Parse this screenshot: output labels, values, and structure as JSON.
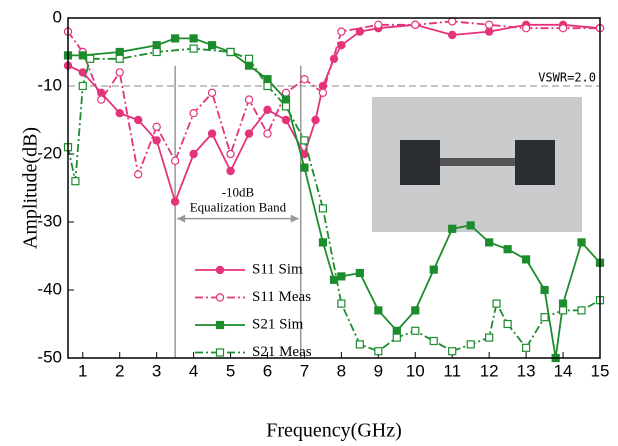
{
  "chart_data": {
    "type": "line",
    "xlabel": "Frequency(GHz)",
    "ylabel": "Amplitude(dB)",
    "xlim": [
      0.6,
      15
    ],
    "ylim": [
      -50,
      0
    ],
    "xticks": [
      1,
      2,
      3,
      4,
      5,
      6,
      7,
      8,
      9,
      10,
      11,
      12,
      13,
      14,
      15
    ],
    "yticks": [
      0,
      -10,
      -20,
      -30,
      -40,
      -50
    ],
    "reference_line": {
      "value": -10,
      "label": "VSWR=2.0"
    },
    "band": {
      "x": [
        3.5,
        6.9
      ],
      "y": -29.5,
      "label_top": "-10dB",
      "label_bottom": "Equalization Band"
    },
    "legend": "lower center",
    "series": [
      {
        "name": "S11 Sim",
        "color": "#e5337b",
        "style": "solid",
        "marker": "circle",
        "filled": true,
        "x": [
          0.6,
          1,
          1.5,
          2,
          2.5,
          3,
          3.5,
          4,
          4.5,
          5,
          5.5,
          6,
          6.5,
          7,
          7.3,
          7.5,
          7.8,
          8,
          8.5,
          9,
          10,
          11,
          12,
          13,
          14,
          15
        ],
        "values": [
          -7,
          -8,
          -11,
          -14,
          -15,
          -18,
          -27,
          -20,
          -17,
          -22.5,
          -17,
          -13.5,
          -15,
          -20,
          -15,
          -10,
          -6,
          -4,
          -2,
          -1.5,
          -1,
          -2.5,
          -2,
          -1,
          -1,
          -1.5
        ]
      },
      {
        "name": "S11 Meas",
        "color": "#e5337b",
        "style": "dashdot",
        "marker": "circle",
        "filled": false,
        "x": [
          0.6,
          1,
          1.5,
          2,
          2.5,
          3,
          3.5,
          4,
          4.5,
          5,
          5.5,
          6,
          6.5,
          7,
          7.5,
          8,
          9,
          10,
          11,
          12,
          13,
          14,
          15
        ],
        "values": [
          -2,
          -5,
          -12,
          -8,
          -23,
          -16,
          -21,
          -14,
          -11,
          -20,
          -12,
          -17,
          -11,
          -9,
          -11,
          -2,
          -1,
          -1,
          -0.5,
          -1,
          -1.5,
          -1.5,
          -1.5
        ]
      },
      {
        "name": "S21 Sim",
        "color": "#1c8c2c",
        "style": "solid",
        "marker": "square",
        "filled": true,
        "x": [
          0.6,
          1,
          2,
          3,
          3.5,
          4,
          4.5,
          5,
          5.5,
          6,
          6.5,
          7,
          7.5,
          7.8,
          8,
          8.5,
          9,
          9.5,
          10,
          10.5,
          11,
          11.5,
          12,
          12.5,
          13,
          13.5,
          13.8,
          14,
          14.5,
          15
        ],
        "values": [
          -5.5,
          -5.5,
          -5,
          -4,
          -3,
          -3,
          -4,
          -5,
          -7,
          -9,
          -12,
          -22,
          -33,
          -38.5,
          -38,
          -37.5,
          -43,
          -46,
          -43,
          -37,
          -31,
          -30.5,
          -33,
          -34,
          -35.5,
          -40,
          -50,
          -42,
          -33,
          -36
        ]
      },
      {
        "name": "S21 Meas",
        "color": "#1c8c2c",
        "style": "dashdot",
        "marker": "square",
        "filled": false,
        "x": [
          0.6,
          0.8,
          1,
          1.2,
          2,
          3,
          4,
          5,
          5.5,
          6,
          6.5,
          7,
          7.5,
          8,
          8.5,
          9,
          9.5,
          10,
          10.5,
          11,
          11.5,
          12,
          12.2,
          12.5,
          13,
          13.5,
          14,
          14.5,
          15
        ],
        "values": [
          -19,
          -24,
          -10,
          -6,
          -6,
          -5,
          -4.5,
          -5,
          -6,
          -10,
          -13,
          -18,
          -28,
          -42,
          -48,
          -49,
          -47,
          -46,
          -47.5,
          -49,
          -48,
          -47,
          -42,
          -45,
          -48.5,
          -44,
          -43,
          -43,
          -41.5
        ]
      }
    ]
  }
}
